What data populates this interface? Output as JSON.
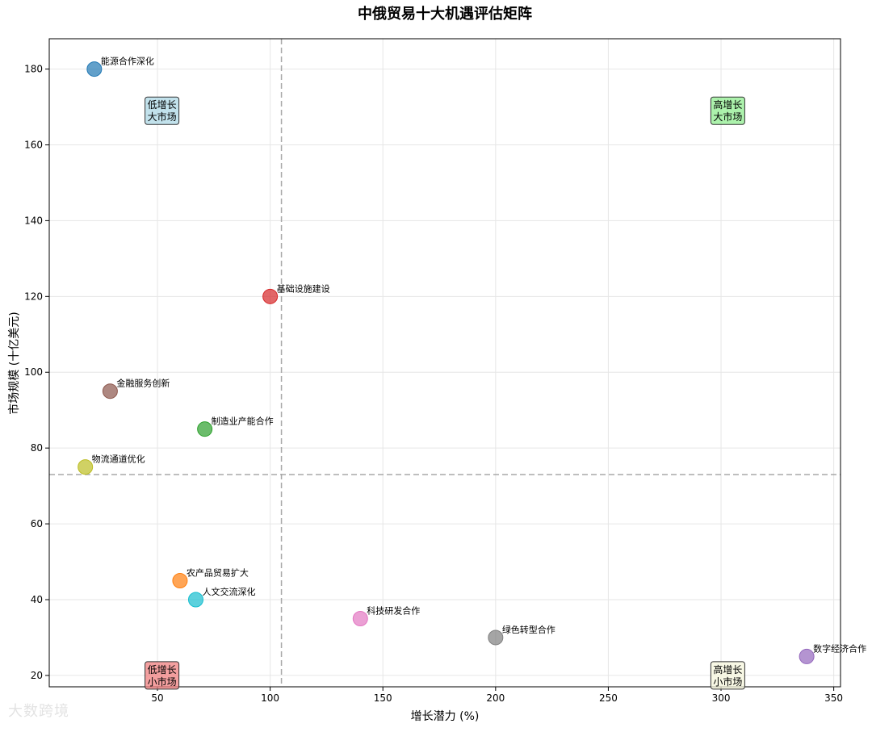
{
  "chart_data": {
    "type": "scatter",
    "title": "中俄贸易十大机遇评估矩阵",
    "xlabel": "增长潜力 (%)",
    "ylabel": "市场规模 (十亿美元)",
    "xlim": [
      2,
      353
    ],
    "ylim": [
      17,
      188
    ],
    "xticks": [
      50,
      100,
      150,
      200,
      250,
      300,
      350
    ],
    "yticks": [
      20,
      40,
      60,
      80,
      100,
      120,
      140,
      160,
      180
    ],
    "grid": true,
    "reference_lines": {
      "x": 105,
      "y": 73
    },
    "points": [
      {
        "label": "能源合作深化",
        "x": 22,
        "y": 180,
        "color": "#1f77b4"
      },
      {
        "label": "基础设施建设",
        "x": 100,
        "y": 120,
        "color": "#d62728"
      },
      {
        "label": "金融服务创新",
        "x": 29,
        "y": 95,
        "color": "#8c564b"
      },
      {
        "label": "制造业产能合作",
        "x": 71,
        "y": 85,
        "color": "#2ca02c"
      },
      {
        "label": "物流通道优化",
        "x": 18,
        "y": 75,
        "color": "#bcbd22"
      },
      {
        "label": "农产品贸易扩大",
        "x": 60,
        "y": 45,
        "color": "#ff7f0e"
      },
      {
        "label": "人文交流深化",
        "x": 67,
        "y": 40,
        "color": "#17becf"
      },
      {
        "label": "科技研发合作",
        "x": 140,
        "y": 35,
        "color": "#e377c2"
      },
      {
        "label": "绿色转型合作",
        "x": 200,
        "y": 30,
        "color": "#7f7f7f"
      },
      {
        "label": "数字经济合作",
        "x": 338,
        "y": 25,
        "color": "#9467bd"
      }
    ],
    "quadrant_labels": [
      {
        "line1": "低增长",
        "line2": "大市场",
        "x": 52,
        "y": 169,
        "color": "#add8e6"
      },
      {
        "line1": "高增长",
        "line2": "大市场",
        "x": 303,
        "y": 169,
        "color": "#90ee90"
      },
      {
        "line1": "低增长",
        "line2": "小市场",
        "x": 52,
        "y": 20,
        "color": "#f08080"
      },
      {
        "line1": "高增长",
        "line2": "小市场",
        "x": 303,
        "y": 20,
        "color": "#f5f5dc"
      }
    ]
  },
  "watermark": "大数跨境"
}
